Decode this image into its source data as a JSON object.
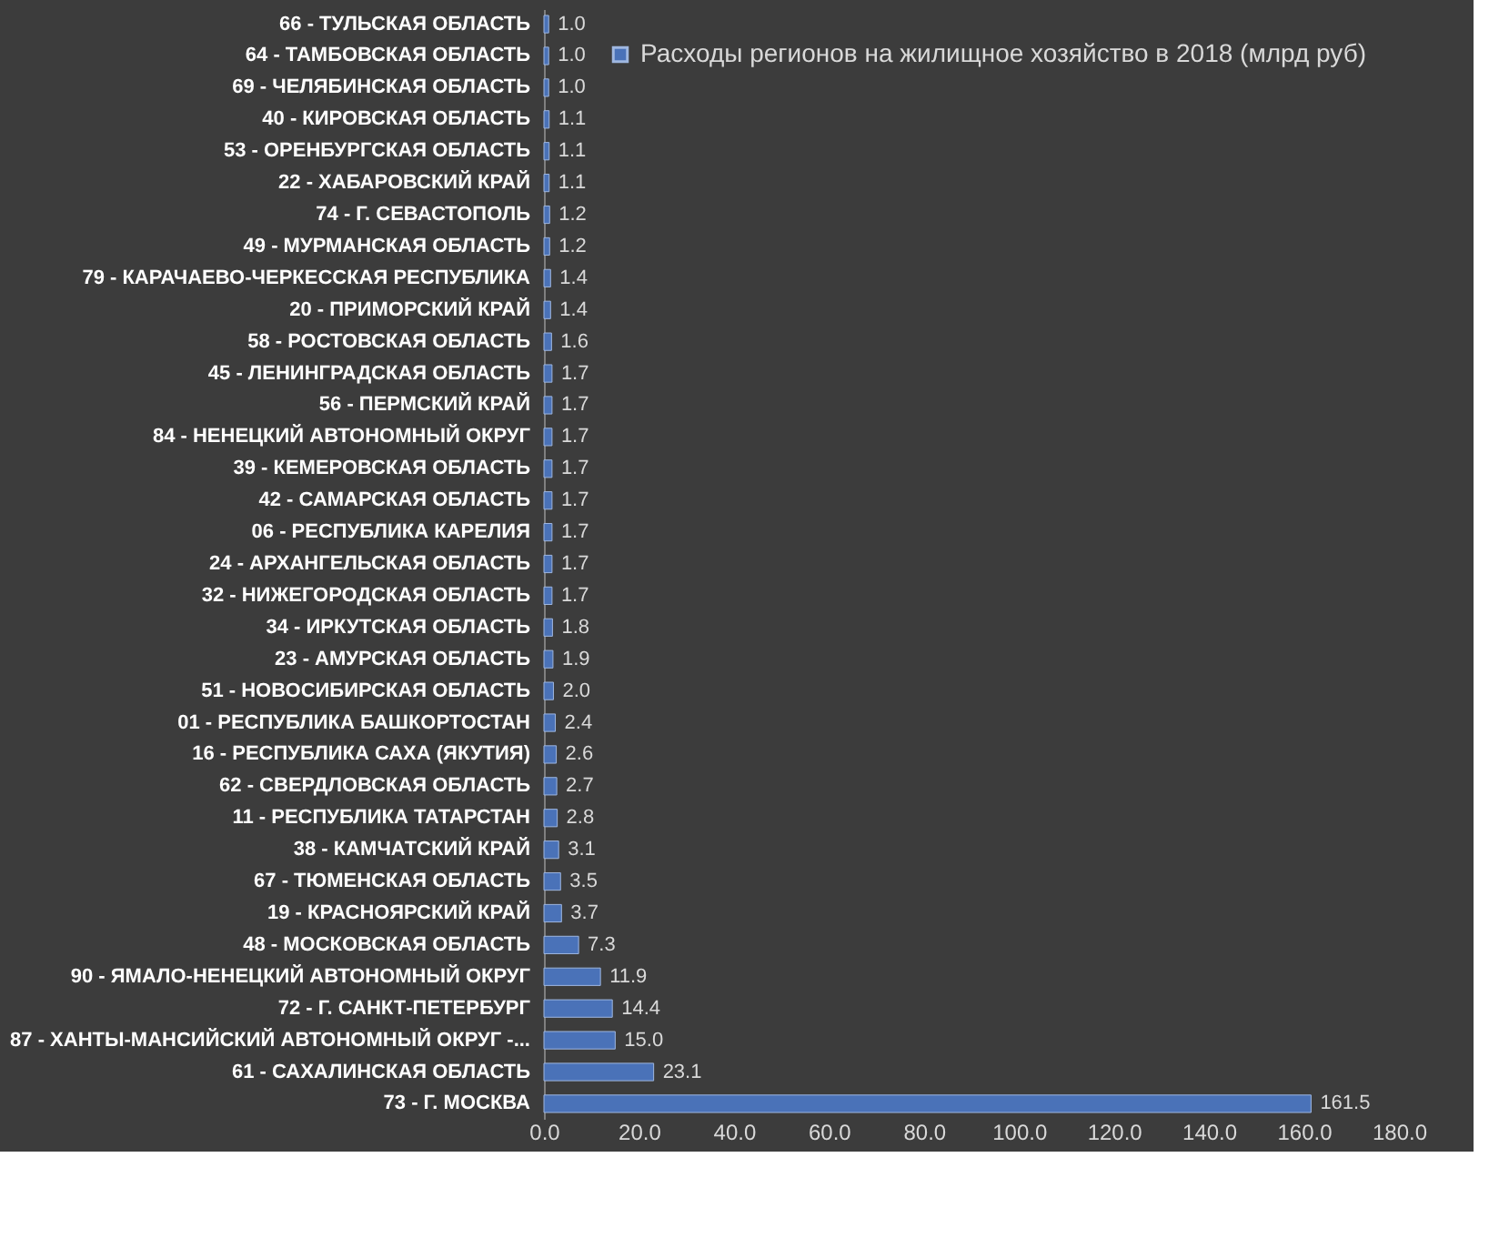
{
  "chart_data": {
    "type": "bar",
    "orientation": "horizontal",
    "categories": [
      "66 - ТУЛЬСКАЯ ОБЛАСТЬ",
      "64 - ТАМБОВСКАЯ ОБЛАСТЬ",
      "69 - ЧЕЛЯБИНСКАЯ ОБЛАСТЬ",
      "40 - КИРОВСКАЯ ОБЛАСТЬ",
      "53 - ОРЕНБУРГСКАЯ ОБЛАСТЬ",
      "22 - ХАБАРОВСКИЙ КРАЙ",
      "74 - Г. СЕВАСТОПОЛЬ",
      "49 - МУРМАНСКАЯ ОБЛАСТЬ",
      "79 - КАРАЧАЕВО-ЧЕРКЕССКАЯ РЕСПУБЛИКА",
      "20 - ПРИМОРСКИЙ КРАЙ",
      "58 - РОСТОВСКАЯ ОБЛАСТЬ",
      "45 - ЛЕНИНГРАДСКАЯ ОБЛАСТЬ",
      "56 - ПЕРМСКИЙ КРАЙ",
      "84 - НЕНЕЦКИЙ АВТОНОМНЫЙ ОКРУГ",
      "39 - КЕМЕРОВСКАЯ ОБЛАСТЬ",
      "42 - САМАРСКАЯ ОБЛАСТЬ",
      "06 - РЕСПУБЛИКА КАРЕЛИЯ",
      "24 - АРХАНГЕЛЬСКАЯ ОБЛАСТЬ",
      "32 - НИЖЕГОРОДСКАЯ ОБЛАСТЬ",
      "34 - ИРКУТСКАЯ ОБЛАСТЬ",
      "23 - АМУРСКАЯ ОБЛАСТЬ",
      "51 - НОВОСИБИРСКАЯ ОБЛАСТЬ",
      "01 - РЕСПУБЛИКА БАШКОРТОСТАН",
      "16 - РЕСПУБЛИКА САХА (ЯКУТИЯ)",
      "62 - СВЕРДЛОВСКАЯ ОБЛАСТЬ",
      "11 - РЕСПУБЛИКА ТАТАРСТАН",
      "38 - КАМЧАТСКИЙ КРАЙ",
      "67 - ТЮМЕНСКАЯ ОБЛАСТЬ",
      "19 - КРАСНОЯРСКИЙ КРАЙ",
      "48 - МОСКОВСКАЯ ОБЛАСТЬ",
      "90 - ЯМАЛО-НЕНЕЦКИЙ АВТОНОМНЫЙ ОКРУГ",
      "72 - Г. САНКТ-ПЕТЕРБУРГ",
      "87 - ХАНТЫ-МАНСИЙСКИЙ АВТОНОМНЫЙ ОКРУГ -...",
      "61 - САХАЛИНСКАЯ ОБЛАСТЬ",
      "73 - Г. МОСКВА"
    ],
    "series": [
      {
        "name": "Расходы регионов на жилищное хозяйство в 2018 (млрд руб)",
        "color": "#4a72b8",
        "values": [
          1.0,
          1.0,
          1.0,
          1.1,
          1.1,
          1.1,
          1.2,
          1.2,
          1.4,
          1.4,
          1.6,
          1.7,
          1.7,
          1.7,
          1.7,
          1.7,
          1.7,
          1.7,
          1.7,
          1.8,
          1.9,
          2.0,
          2.4,
          2.6,
          2.7,
          2.8,
          3.1,
          3.5,
          3.7,
          7.3,
          11.9,
          14.4,
          15.0,
          23.1,
          161.5
        ]
      }
    ],
    "xlim": [
      0,
      180
    ],
    "xticks": [
      {
        "value": 0,
        "label": "0.0"
      },
      {
        "value": 20,
        "label": "20.0"
      },
      {
        "value": 40,
        "label": "40.0"
      },
      {
        "value": 60,
        "label": "60.0"
      },
      {
        "value": 80,
        "label": "80.0"
      },
      {
        "value": 100,
        "label": "100.0"
      },
      {
        "value": 120,
        "label": "120.0"
      },
      {
        "value": 140,
        "label": "140.0"
      },
      {
        "value": 160,
        "label": "160.0"
      },
      {
        "value": 180,
        "label": "180.0"
      }
    ],
    "value_labels": [
      "1.0",
      "1.0",
      "1.0",
      "1.1",
      "1.1",
      "1.1",
      "1.2",
      "1.2",
      "1.4",
      "1.4",
      "1.6",
      "1.7",
      "1.7",
      "1.7",
      "1.7",
      "1.7",
      "1.7",
      "1.7",
      "1.7",
      "1.8",
      "1.9",
      "2.0",
      "2.4",
      "2.6",
      "2.7",
      "2.8",
      "3.1",
      "3.5",
      "3.7",
      "7.3",
      "11.9",
      "14.4",
      "15.0",
      "23.1",
      "161.5"
    ],
    "legend": "top right",
    "grid": false
  }
}
